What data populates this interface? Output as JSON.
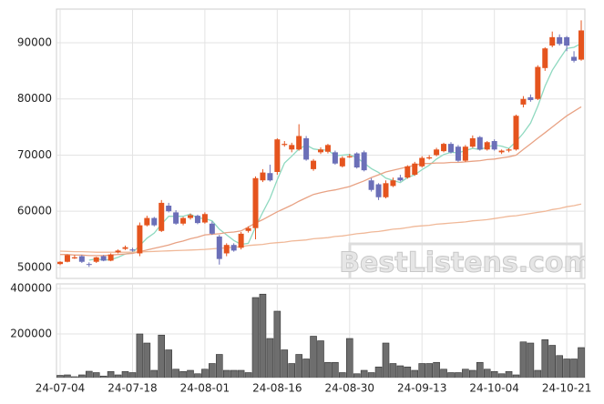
{
  "chart_data": {
    "type": "candlestick",
    "categories": [
      "24-07-04",
      null,
      null,
      null,
      null,
      null,
      null,
      null,
      null,
      null,
      "24-07-18",
      null,
      null,
      null,
      null,
      null,
      null,
      null,
      null,
      null,
      "24-08-01",
      null,
      null,
      null,
      null,
      null,
      null,
      null,
      null,
      null,
      "24-08-16",
      null,
      null,
      null,
      null,
      null,
      null,
      null,
      null,
      null,
      "24-08-30",
      null,
      null,
      null,
      null,
      null,
      null,
      null,
      null,
      null,
      "24-09-13",
      null,
      null,
      null,
      null,
      null,
      null,
      null,
      null,
      null,
      "24-10-04",
      null,
      null,
      null,
      null,
      null,
      null,
      null,
      null,
      null,
      "24-10-21",
      null,
      null
    ],
    "open": [
      50600,
      51000,
      51600,
      52000,
      50600,
      51000,
      52000,
      51200,
      52700,
      53300,
      53200,
      52500,
      57500,
      58800,
      56500,
      61000,
      59800,
      57800,
      58800,
      59200,
      58000,
      57800,
      55500,
      52500,
      54000,
      53500,
      56500,
      57000,
      65500,
      66800,
      67000,
      71800,
      71000,
      71000,
      73000,
      67500,
      70500,
      70600,
      70500,
      68000,
      69600,
      70300,
      70500,
      65500,
      64800,
      62500,
      64500,
      66000,
      66000,
      66500,
      68000,
      69400,
      70000,
      70700,
      72000,
      71500,
      69000,
      71500,
      73200,
      71000,
      72500,
      70500,
      70800,
      71000,
      79000,
      80300,
      80000,
      85500,
      89500,
      91000,
      91000,
      87500,
      87000
    ],
    "high": [
      51100,
      52300,
      52200,
      52200,
      50900,
      51900,
      52200,
      52500,
      53200,
      53900,
      53500,
      58000,
      59200,
      59000,
      62000,
      61500,
      60200,
      59000,
      59600,
      59400,
      59800,
      58200,
      55800,
      54300,
      54300,
      56300,
      57300,
      66200,
      67500,
      68300,
      73000,
      72500,
      72200,
      75500,
      73400,
      69300,
      71400,
      72000,
      70800,
      69800,
      70200,
      70500,
      70800,
      65900,
      65000,
      65500,
      66000,
      66500,
      68200,
      68800,
      69800,
      70000,
      71300,
      72200,
      72300,
      71800,
      71800,
      73500,
      73400,
      72500,
      72800,
      71000,
      71200,
      77200,
      80500,
      80800,
      86000,
      89200,
      92000,
      91500,
      91200,
      88500,
      94000
    ],
    "low": [
      50400,
      50900,
      51500,
      50800,
      50100,
      50800,
      51100,
      51100,
      52500,
      53100,
      52800,
      52000,
      57300,
      57300,
      56300,
      59800,
      57600,
      57500,
      58500,
      57700,
      57800,
      55800,
      50500,
      52000,
      52800,
      53200,
      56200,
      55000,
      65200,
      65300,
      66500,
      71500,
      70500,
      70800,
      69000,
      67200,
      70200,
      70300,
      68300,
      67800,
      69500,
      67600,
      67100,
      63500,
      62000,
      62300,
      64300,
      65300,
      65800,
      66300,
      67800,
      69200,
      69800,
      70500,
      70300,
      68800,
      68800,
      71300,
      70800,
      70800,
      70800,
      70200,
      70500,
      70800,
      78500,
      79500,
      79800,
      85000,
      89200,
      89500,
      88500,
      86500,
      86800
    ],
    "close": [
      51000,
      52200,
      51800,
      51000,
      50500,
      51800,
      51200,
      52300,
      53000,
      53600,
      53000,
      57500,
      58800,
      57500,
      61500,
      60000,
      57800,
      58800,
      59300,
      57900,
      59500,
      56000,
      51500,
      54000,
      53000,
      56000,
      57000,
      65900,
      66900,
      65500,
      72800,
      72000,
      71800,
      73400,
      69200,
      69000,
      71000,
      71800,
      68500,
      69500,
      69800,
      67800,
      67300,
      63800,
      62500,
      65000,
      65500,
      65500,
      68000,
      68500,
      69500,
      69600,
      71000,
      72000,
      70500,
      69000,
      71500,
      73000,
      71000,
      72300,
      71000,
      70800,
      71000,
      77000,
      80000,
      79800,
      85700,
      89000,
      91000,
      89800,
      89500,
      86800,
      92200
    ],
    "up_color": "#e5541e",
    "down_color": "#6b6fb8",
    "lines": [
      {
        "color": "#8fd9c0",
        "values": [
          null,
          null,
          null,
          null,
          51300,
          51500,
          51300,
          51400,
          51800,
          52400,
          52600,
          53900,
          55200,
          56100,
          57700,
          59100,
          59100,
          59100,
          59500,
          58800,
          58700,
          58300,
          56800,
          55800,
          54800,
          54100,
          54300,
          57200,
          59800,
          62300,
          65600,
          68600,
          69800,
          71100,
          71800,
          71100,
          70900,
          70900,
          69900,
          70000,
          70100,
          69500,
          68600,
          67600,
          66900,
          65900,
          65500,
          65100,
          66000,
          66500,
          67400,
          68200,
          69300,
          70100,
          70500,
          70400,
          70800,
          71200,
          71000,
          71400,
          71800,
          71600,
          71200,
          72400,
          73900,
          75700,
          78700,
          82300,
          85100,
          87100,
          89000,
          89200,
          89900
        ]
      },
      {
        "color": "#e8a284",
        "values": [
          52300,
          52300,
          52200,
          52200,
          52100,
          52100,
          52100,
          52200,
          52300,
          52400,
          52500,
          52800,
          53100,
          53400,
          53700,
          54000,
          54400,
          54700,
          55100,
          55400,
          55800,
          55900,
          56000,
          56200,
          56300,
          56500,
          57200,
          57900,
          58500,
          59200,
          59900,
          60500,
          61100,
          61800,
          62400,
          63000,
          63300,
          63600,
          63800,
          64100,
          64400,
          64900,
          65400,
          66000,
          66500,
          67000,
          67300,
          67600,
          67900,
          68200,
          68500,
          68500,
          68600,
          68600,
          68700,
          68700,
          68800,
          68900,
          69000,
          69200,
          69300,
          69500,
          69700,
          70000,
          71000,
          72000,
          73000,
          74000,
          75000,
          76000,
          77000,
          77800,
          78600
        ]
      },
      {
        "color": "#f0b898",
        "values": [
          52900,
          52850,
          52800,
          52800,
          52750,
          52700,
          52700,
          52700,
          52700,
          52700,
          52700,
          52750,
          52800,
          52850,
          52900,
          52950,
          53000,
          53050,
          53100,
          53150,
          53200,
          53300,
          53400,
          53500,
          53600,
          53700,
          53900,
          54000,
          54100,
          54300,
          54400,
          54500,
          54700,
          54800,
          54900,
          55100,
          55200,
          55300,
          55500,
          55600,
          55800,
          56000,
          56100,
          56300,
          56400,
          56600,
          56800,
          56900,
          57100,
          57300,
          57400,
          57500,
          57700,
          57800,
          57900,
          58000,
          58100,
          58300,
          58400,
          58500,
          58700,
          58900,
          59100,
          59200,
          59400,
          59600,
          59800,
          60000,
          60300,
          60500,
          60800,
          61000,
          61300
        ]
      }
    ],
    "ylim": [
      48200,
      96000
    ],
    "yticks": [
      50000,
      60000,
      70000,
      80000,
      90000
    ],
    "volume": {
      "color": "#6e6e6e",
      "ylim": [
        0,
        420000
      ],
      "yticks": [
        200000,
        400000
      ],
      "values": [
        18000,
        20000,
        12000,
        20000,
        36000,
        30000,
        15000,
        35000,
        20000,
        35000,
        30000,
        200000,
        160000,
        40000,
        195000,
        130000,
        45000,
        35000,
        40000,
        25000,
        45000,
        70000,
        110000,
        40000,
        40000,
        40000,
        30000,
        360000,
        375000,
        180000,
        300000,
        130000,
        70000,
        110000,
        90000,
        190000,
        170000,
        75000,
        75000,
        30000,
        180000,
        25000,
        40000,
        30000,
        55000,
        160000,
        70000,
        60000,
        55000,
        40000,
        70000,
        70000,
        75000,
        45000,
        30000,
        30000,
        45000,
        40000,
        75000,
        45000,
        35000,
        25000,
        35000,
        20000,
        165000,
        160000,
        40000,
        175000,
        150000,
        105000,
        90000,
        90000,
        140000
      ]
    },
    "grid": true,
    "watermark": "BestListens.com"
  }
}
